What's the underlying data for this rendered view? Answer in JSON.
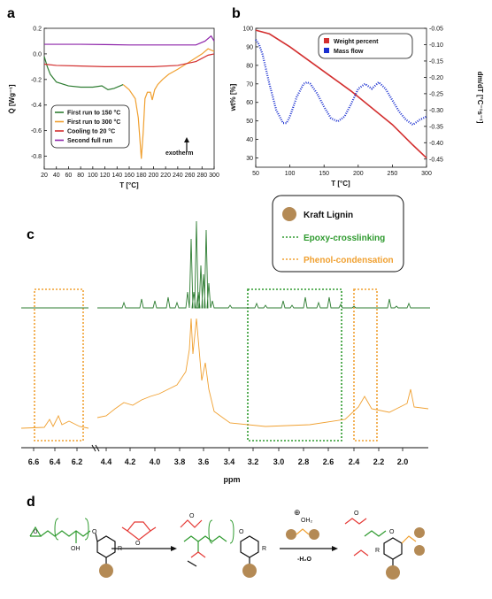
{
  "panel_labels": {
    "a": "a",
    "b": "b",
    "c": "c",
    "d": "d"
  },
  "colors": {
    "green": "#2e7d32",
    "orange": "#f0a030",
    "red": "#d32f2f",
    "purple": "#8e24aa",
    "blue": "#1a2fd0",
    "gold": "#b48a55",
    "maleic": "#e53935",
    "box_gold": "#f0a030",
    "box_green": "#2e9a2e"
  },
  "chart_data": [
    {
      "type": "line",
      "panel": "a",
      "xlabel": "T [°C]",
      "ylabel": "Q̇ [Wg⁻¹]",
      "xlim": [
        20,
        300
      ],
      "ylim": [
        -0.9,
        0.2
      ],
      "xticks": [
        20,
        40,
        60,
        80,
        100,
        120,
        140,
        160,
        180,
        200,
        220,
        240,
        260,
        280,
        300
      ],
      "yticks": [
        0.2,
        0.0,
        -0.2,
        -0.4,
        -0.6,
        -0.8
      ],
      "ytick_labels": [
        "0.2",
        "0.0",
        "-0.2",
        "-0.4",
        "-0.6",
        "-0.8"
      ],
      "annotation": "exotherm",
      "legend_position": "bottom-left",
      "series": [
        {
          "name": "First run to 150 °C",
          "color": "#2e7d32",
          "x": [
            20,
            25,
            30,
            40,
            60,
            80,
            100,
            115,
            125,
            135,
            145,
            150
          ],
          "y": [
            -0.02,
            -0.1,
            -0.16,
            -0.22,
            -0.25,
            -0.26,
            -0.26,
            -0.25,
            -0.28,
            -0.27,
            -0.25,
            -0.24
          ]
        },
        {
          "name": "First run to 300 °C",
          "color": "#f0a030",
          "x": [
            150,
            160,
            170,
            175,
            180,
            183,
            186,
            190,
            195,
            198,
            202,
            207,
            215,
            225,
            240,
            260,
            280,
            290,
            300
          ],
          "y": [
            -0.24,
            -0.28,
            -0.35,
            -0.5,
            -0.82,
            -0.62,
            -0.35,
            -0.3,
            -0.3,
            -0.36,
            -0.28,
            -0.24,
            -0.2,
            -0.16,
            -0.12,
            -0.06,
            0.0,
            0.04,
            0.02
          ]
        },
        {
          "name": "Cooling to 20 °C",
          "color": "#d32f2f",
          "x": [
            20,
            40,
            80,
            120,
            160,
            200,
            240,
            270,
            290,
            300
          ],
          "y": [
            -0.08,
            -0.09,
            -0.095,
            -0.1,
            -0.1,
            -0.1,
            -0.09,
            -0.06,
            -0.01,
            0.0
          ]
        },
        {
          "name": "Second full run",
          "color": "#8e24aa",
          "x": [
            20,
            40,
            80,
            120,
            160,
            200,
            240,
            270,
            285,
            295,
            300
          ],
          "y": [
            0.075,
            0.075,
            0.075,
            0.073,
            0.07,
            0.07,
            0.07,
            0.07,
            0.1,
            0.14,
            0.1
          ]
        }
      ]
    },
    {
      "type": "line",
      "panel": "b",
      "xlabel": "T [°C]",
      "ylabel": "wt% [%]",
      "ylabel_right": "dm/dT [°C⁻¹s⁻¹]",
      "xlim": [
        50,
        300
      ],
      "ylim": [
        25,
        100
      ],
      "ylim_right": [
        -0.475,
        -0.05
      ],
      "xticks": [
        50,
        100,
        150,
        200,
        250,
        300
      ],
      "yticks": [
        30,
        40,
        50,
        60,
        70,
        80,
        90,
        100
      ],
      "yticks_right": [
        -0.05,
        -0.1,
        -0.15,
        -0.2,
        -0.25,
        -0.3,
        -0.35,
        -0.4,
        -0.45
      ],
      "yticks_right_labels": [
        "-0.05",
        "-0.10",
        "-0.15",
        "-0.20",
        "-0.25",
        "-0.30",
        "-0.35",
        "-0.40",
        "-0.45"
      ],
      "legend_position": "top-right",
      "series": [
        {
          "name": "Weight percent",
          "color": "#d32f2f",
          "axis": "left",
          "x": [
            50,
            70,
            100,
            130,
            160,
            190,
            220,
            250,
            280,
            300
          ],
          "y": [
            99,
            97,
            90,
            82,
            74,
            66,
            57,
            48,
            37,
            30
          ]
        },
        {
          "name": "Mass flow",
          "color": "#1a2fd0",
          "axis": "right",
          "x": [
            50,
            55,
            60,
            70,
            80,
            90,
            95,
            100,
            110,
            120,
            125,
            130,
            140,
            150,
            160,
            170,
            180,
            190,
            200,
            210,
            220,
            230,
            240,
            250,
            260,
            270,
            280,
            290,
            300
          ],
          "y": [
            -0.085,
            -0.1,
            -0.13,
            -0.22,
            -0.3,
            -0.34,
            -0.34,
            -0.32,
            -0.26,
            -0.22,
            -0.215,
            -0.22,
            -0.25,
            -0.29,
            -0.325,
            -0.335,
            -0.32,
            -0.28,
            -0.235,
            -0.22,
            -0.235,
            -0.215,
            -0.235,
            -0.27,
            -0.305,
            -0.33,
            -0.345,
            -0.33,
            -0.32
          ]
        }
      ]
    },
    {
      "type": "line",
      "panel": "c",
      "xlabel": "ppm",
      "xticks": [
        6.6,
        6.4,
        6.2,
        4.4,
        4.2,
        4.0,
        3.8,
        3.6,
        3.4,
        3.2,
        3.0,
        2.8,
        2.6,
        2.4,
        2.2,
        2.0
      ],
      "xtick_labels": [
        "6.6",
        "6.4",
        "6.2",
        "4.4",
        "4.2",
        "4.0",
        "3.8",
        "3.6",
        "3.4",
        "3.2",
        "3.0",
        "2.8",
        "2.6",
        "2.4",
        "2.2",
        "2.0"
      ],
      "legend": [
        "Kraft Lignin",
        "Epoxy-crosslinking",
        "Phenol-condensation"
      ],
      "legend_position": "top-right"
    }
  ],
  "scheme": {
    "oh_label": "OH",
    "r_label": "R",
    "h2o_top": "OH₂",
    "minus_h2o": "-H₂O",
    "plus": "⊕",
    "o": "O"
  }
}
